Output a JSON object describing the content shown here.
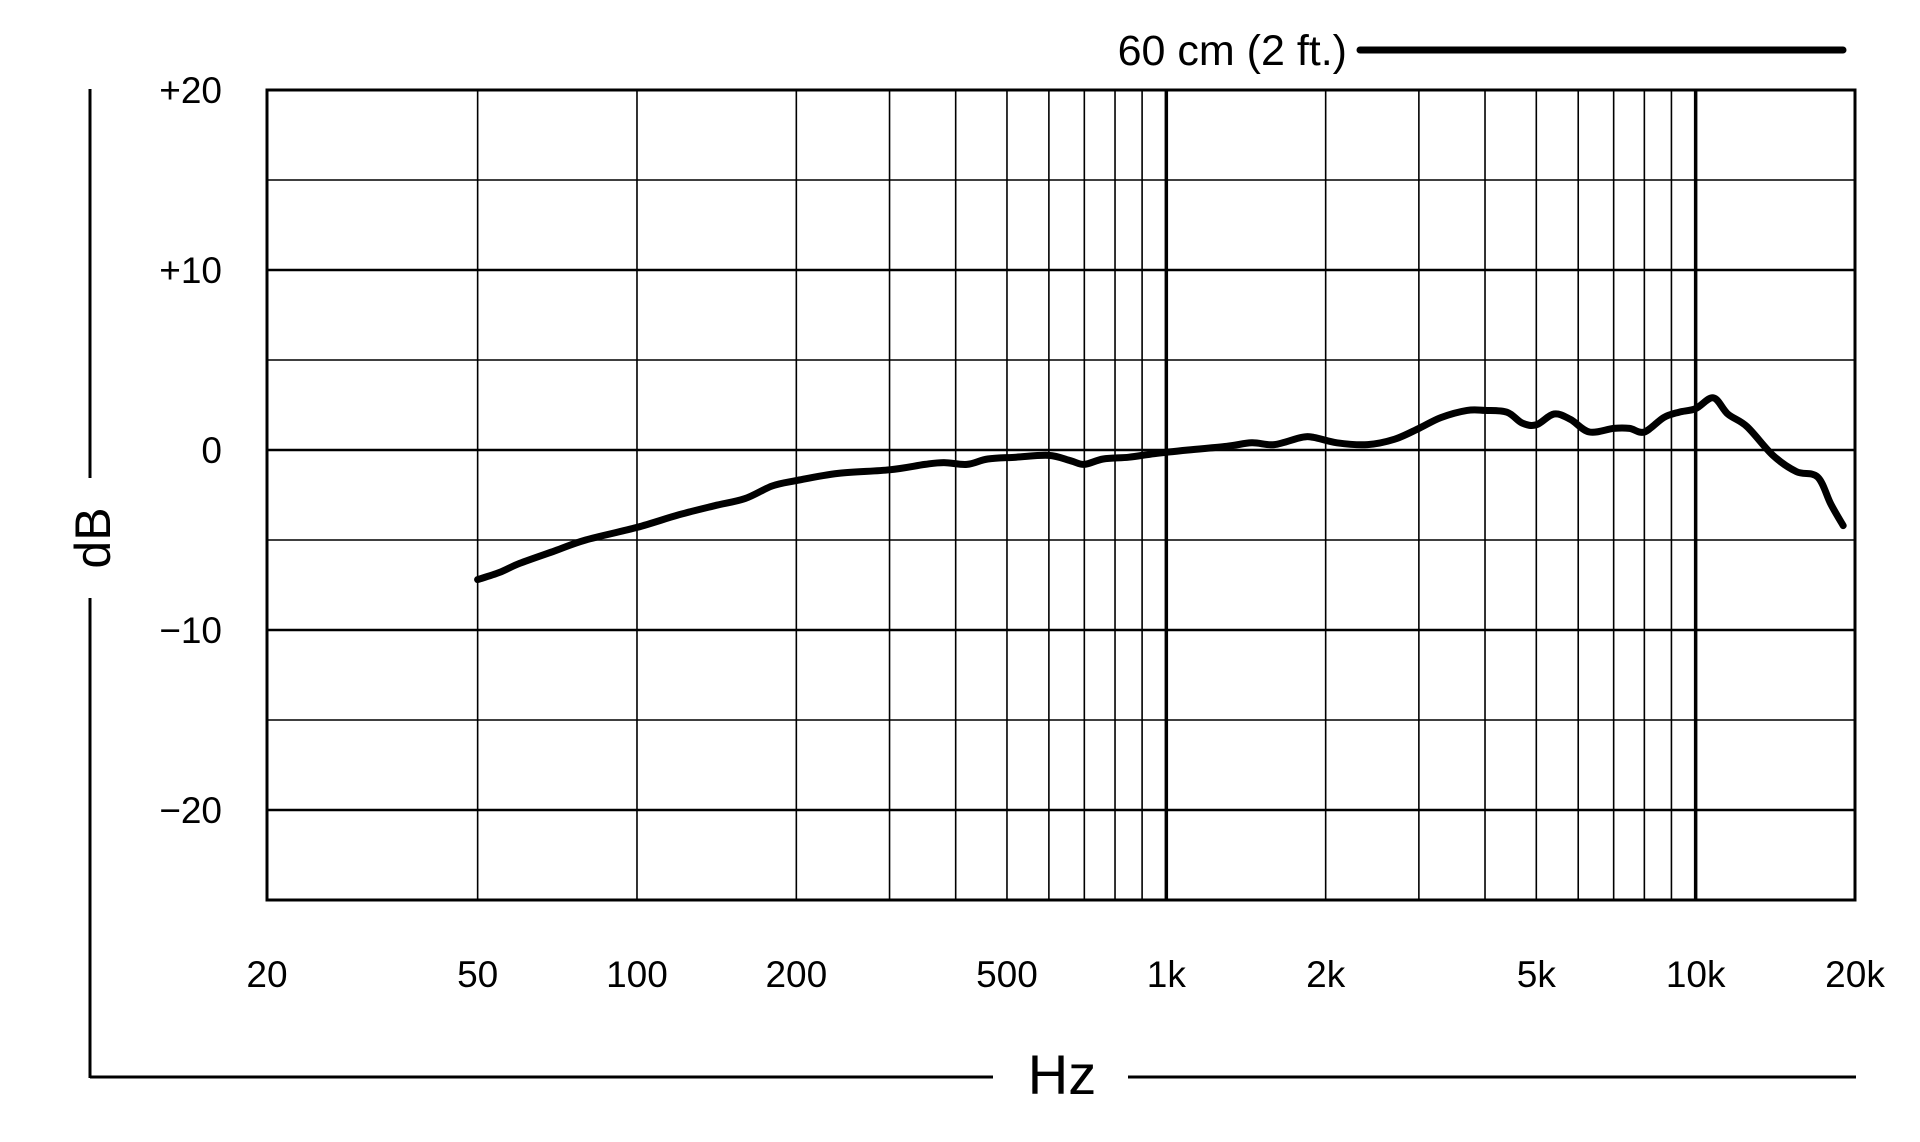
{
  "chart_data": {
    "type": "line",
    "xlabel": "Hz",
    "ylabel": "dB",
    "x_scale": "log",
    "xlim": [
      20,
      20000
    ],
    "ylim": [
      -25,
      20
    ],
    "x_ticks": [
      {
        "value": 20,
        "label": "20"
      },
      {
        "value": 50,
        "label": "50"
      },
      {
        "value": 100,
        "label": "100"
      },
      {
        "value": 200,
        "label": "200"
      },
      {
        "value": 500,
        "label": "500"
      },
      {
        "value": 1000,
        "label": "1k"
      },
      {
        "value": 2000,
        "label": "2k"
      },
      {
        "value": 5000,
        "label": "5k"
      },
      {
        "value": 10000,
        "label": "10k"
      },
      {
        "value": 20000,
        "label": "20k"
      }
    ],
    "y_ticks": [
      {
        "value": 20,
        "label": "+20"
      },
      {
        "value": 10,
        "label": "+10"
      },
      {
        "value": 0,
        "label": "0"
      },
      {
        "value": -10,
        "label": "−10"
      },
      {
        "value": -20,
        "label": "−20"
      }
    ],
    "x_grid": [
      20,
      50,
      100,
      200,
      300,
      400,
      500,
      600,
      700,
      800,
      900,
      1000,
      2000,
      3000,
      4000,
      5000,
      6000,
      7000,
      8000,
      9000,
      10000,
      20000
    ],
    "x_grid_major": [
      1000,
      10000
    ],
    "y_grid": [
      20,
      15,
      10,
      5,
      0,
      -5,
      -10,
      -15,
      -20
    ],
    "grid": true,
    "legend": {
      "position": "top-right",
      "entries": [
        {
          "label": "60 cm (2 ft.)"
        }
      ]
    },
    "series": [
      {
        "name": "60 cm (2 ft.)",
        "color": "#000000",
        "points": [
          [
            50,
            -7.2
          ],
          [
            55,
            -6.8
          ],
          [
            60,
            -6.3
          ],
          [
            70,
            -5.6
          ],
          [
            80,
            -5.0
          ],
          [
            100,
            -4.3
          ],
          [
            120,
            -3.6
          ],
          [
            140,
            -3.1
          ],
          [
            160,
            -2.7
          ],
          [
            180,
            -2.0
          ],
          [
            200,
            -1.7
          ],
          [
            240,
            -1.3
          ],
          [
            300,
            -1.1
          ],
          [
            350,
            -0.8
          ],
          [
            380,
            -0.7
          ],
          [
            420,
            -0.8
          ],
          [
            460,
            -0.5
          ],
          [
            520,
            -0.4
          ],
          [
            600,
            -0.3
          ],
          [
            660,
            -0.6
          ],
          [
            700,
            -0.8
          ],
          [
            760,
            -0.5
          ],
          [
            850,
            -0.4
          ],
          [
            950,
            -0.2
          ],
          [
            1100,
            0.0
          ],
          [
            1300,
            0.2
          ],
          [
            1450,
            0.4
          ],
          [
            1600,
            0.3
          ],
          [
            1800,
            0.7
          ],
          [
            1900,
            0.7
          ],
          [
            2100,
            0.4
          ],
          [
            2400,
            0.3
          ],
          [
            2700,
            0.6
          ],
          [
            3000,
            1.2
          ],
          [
            3300,
            1.8
          ],
          [
            3700,
            2.2
          ],
          [
            4000,
            2.2
          ],
          [
            4400,
            2.1
          ],
          [
            4700,
            1.5
          ],
          [
            5000,
            1.4
          ],
          [
            5400,
            2.0
          ],
          [
            5800,
            1.7
          ],
          [
            6300,
            1.0
          ],
          [
            7000,
            1.2
          ],
          [
            7500,
            1.2
          ],
          [
            8000,
            1.0
          ],
          [
            8700,
            1.8
          ],
          [
            9300,
            2.1
          ],
          [
            10000,
            2.3
          ],
          [
            10800,
            2.9
          ],
          [
            11500,
            2.0
          ],
          [
            12500,
            1.3
          ],
          [
            14000,
            -0.3
          ],
          [
            15500,
            -1.2
          ],
          [
            17000,
            -1.5
          ],
          [
            18000,
            -3.0
          ],
          [
            19000,
            -4.2
          ]
        ]
      }
    ]
  }
}
